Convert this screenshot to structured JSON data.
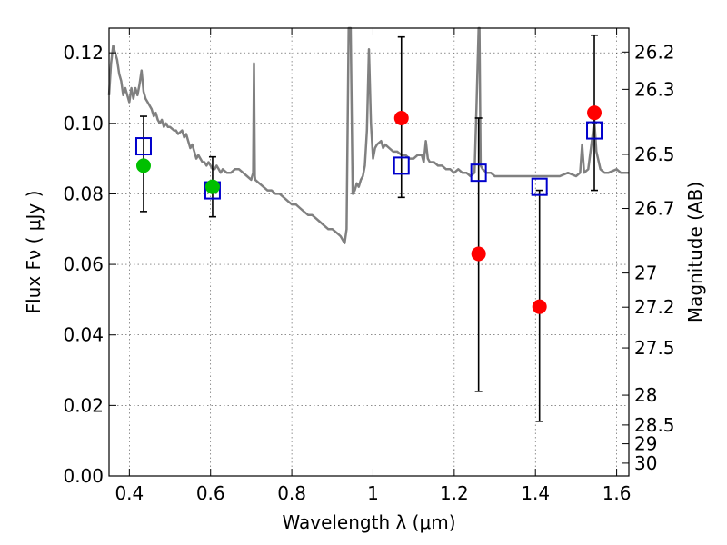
{
  "chart_data": {
    "type": "scatter",
    "xlabel": "Wavelength  λ (μm)",
    "ylabel": "Flux  Fν  ( μJy )",
    "ylabel_right": "Magnitude (AB)",
    "xlim": [
      0.35,
      1.63
    ],
    "ylim": [
      0.0,
      0.127
    ],
    "grid": true,
    "legend": "none",
    "x_ticks": [
      0.4,
      0.6,
      0.8,
      1.0,
      1.2,
      1.4,
      1.6
    ],
    "x_tick_labels": [
      "0.4",
      "0.6",
      "0.8",
      "1",
      "1.2",
      "1.4",
      "1.6"
    ],
    "y_ticks": [
      0.0,
      0.02,
      0.04,
      0.06,
      0.08,
      0.1,
      0.12
    ],
    "y_tick_labels": [
      "0.00",
      "0.02",
      "0.04",
      "0.06",
      "0.08",
      "0.10",
      "0.12"
    ],
    "right_ticks": [
      26.2,
      26.3,
      26.5,
      26.7,
      27,
      27.2,
      27.5,
      28,
      28.5,
      29,
      30
    ],
    "right_tick_labels": [
      "26.2",
      "26.3",
      "26.5",
      "26.7",
      "27",
      "27.2",
      "27.5",
      "28",
      "28.5",
      "29",
      "30"
    ],
    "colors": {
      "template": "#808080",
      "observed_green": "#00c000",
      "observed_red": "#ff0000",
      "model": "#0000cc",
      "errorbar": "#000000"
    },
    "series": [
      {
        "kind": "template_spectrum",
        "marker": "line",
        "points": [
          [
            0.35,
            0.108
          ],
          [
            0.355,
            0.117
          ],
          [
            0.36,
            0.122
          ],
          [
            0.365,
            0.12
          ],
          [
            0.37,
            0.118
          ],
          [
            0.375,
            0.114
          ],
          [
            0.38,
            0.112
          ],
          [
            0.385,
            0.108
          ],
          [
            0.39,
            0.11
          ],
          [
            0.395,
            0.108
          ],
          [
            0.4,
            0.106
          ],
          [
            0.405,
            0.11
          ],
          [
            0.41,
            0.107
          ],
          [
            0.415,
            0.11
          ],
          [
            0.42,
            0.108
          ],
          [
            0.425,
            0.111
          ],
          [
            0.43,
            0.115
          ],
          [
            0.435,
            0.109
          ],
          [
            0.44,
            0.107
          ],
          [
            0.445,
            0.106
          ],
          [
            0.45,
            0.105
          ],
          [
            0.455,
            0.104
          ],
          [
            0.46,
            0.102
          ],
          [
            0.465,
            0.103
          ],
          [
            0.47,
            0.101
          ],
          [
            0.475,
            0.1
          ],
          [
            0.48,
            0.101
          ],
          [
            0.485,
            0.099
          ],
          [
            0.49,
            0.1
          ],
          [
            0.495,
            0.099
          ],
          [
            0.5,
            0.099
          ],
          [
            0.51,
            0.098
          ],
          [
            0.515,
            0.098
          ],
          [
            0.52,
            0.097
          ],
          [
            0.53,
            0.098
          ],
          [
            0.535,
            0.096
          ],
          [
            0.54,
            0.097
          ],
          [
            0.545,
            0.095
          ],
          [
            0.55,
            0.093
          ],
          [
            0.555,
            0.094
          ],
          [
            0.56,
            0.092
          ],
          [
            0.565,
            0.09
          ],
          [
            0.57,
            0.091
          ],
          [
            0.575,
            0.09
          ],
          [
            0.58,
            0.089
          ],
          [
            0.585,
            0.089
          ],
          [
            0.59,
            0.088
          ],
          [
            0.595,
            0.089
          ],
          [
            0.6,
            0.088
          ],
          [
            0.605,
            0.087
          ],
          [
            0.61,
            0.087
          ],
          [
            0.615,
            0.088
          ],
          [
            0.62,
            0.087
          ],
          [
            0.625,
            0.086
          ],
          [
            0.63,
            0.087
          ],
          [
            0.64,
            0.086
          ],
          [
            0.65,
            0.086
          ],
          [
            0.66,
            0.087
          ],
          [
            0.67,
            0.087
          ],
          [
            0.68,
            0.086
          ],
          [
            0.69,
            0.085
          ],
          [
            0.7,
            0.084
          ],
          [
            0.705,
            0.086
          ],
          [
            0.707,
            0.117
          ],
          [
            0.709,
            0.085
          ],
          [
            0.71,
            0.084
          ],
          [
            0.72,
            0.083
          ],
          [
            0.73,
            0.082
          ],
          [
            0.74,
            0.081
          ],
          [
            0.75,
            0.081
          ],
          [
            0.76,
            0.08
          ],
          [
            0.77,
            0.08
          ],
          [
            0.78,
            0.079
          ],
          [
            0.79,
            0.078
          ],
          [
            0.8,
            0.077
          ],
          [
            0.81,
            0.077
          ],
          [
            0.82,
            0.076
          ],
          [
            0.83,
            0.075
          ],
          [
            0.84,
            0.074
          ],
          [
            0.85,
            0.074
          ],
          [
            0.86,
            0.073
          ],
          [
            0.87,
            0.072
          ],
          [
            0.88,
            0.071
          ],
          [
            0.89,
            0.07
          ],
          [
            0.9,
            0.07
          ],
          [
            0.91,
            0.069
          ],
          [
            0.92,
            0.068
          ],
          [
            0.925,
            0.067
          ],
          [
            0.93,
            0.066
          ],
          [
            0.935,
            0.07
          ],
          [
            0.94,
            0.127
          ],
          [
            0.945,
            0.127
          ],
          [
            0.95,
            0.08
          ],
          [
            0.955,
            0.081
          ],
          [
            0.96,
            0.083
          ],
          [
            0.965,
            0.082
          ],
          [
            0.97,
            0.084
          ],
          [
            0.975,
            0.085
          ],
          [
            0.98,
            0.088
          ],
          [
            0.985,
            0.098
          ],
          [
            0.99,
            0.121
          ],
          [
            0.995,
            0.1
          ],
          [
            1.0,
            0.09
          ],
          [
            1.005,
            0.093
          ],
          [
            1.01,
            0.094
          ],
          [
            1.02,
            0.095
          ],
          [
            1.025,
            0.093
          ],
          [
            1.03,
            0.094
          ],
          [
            1.04,
            0.093
          ],
          [
            1.05,
            0.092
          ],
          [
            1.06,
            0.092
          ],
          [
            1.07,
            0.091
          ],
          [
            1.08,
            0.091
          ],
          [
            1.09,
            0.09
          ],
          [
            1.1,
            0.09
          ],
          [
            1.11,
            0.091
          ],
          [
            1.12,
            0.091
          ],
          [
            1.125,
            0.089
          ],
          [
            1.13,
            0.095
          ],
          [
            1.135,
            0.09
          ],
          [
            1.14,
            0.089
          ],
          [
            1.15,
            0.089
          ],
          [
            1.16,
            0.088
          ],
          [
            1.17,
            0.088
          ],
          [
            1.18,
            0.087
          ],
          [
            1.19,
            0.087
          ],
          [
            1.2,
            0.086
          ],
          [
            1.21,
            0.087
          ],
          [
            1.22,
            0.086
          ],
          [
            1.23,
            0.086
          ],
          [
            1.24,
            0.085
          ],
          [
            1.25,
            0.086
          ],
          [
            1.255,
            0.105
          ],
          [
            1.26,
            0.127
          ],
          [
            1.262,
            0.127
          ],
          [
            1.265,
            0.088
          ],
          [
            1.27,
            0.087
          ],
          [
            1.28,
            0.086
          ],
          [
            1.29,
            0.086
          ],
          [
            1.3,
            0.085
          ],
          [
            1.32,
            0.085
          ],
          [
            1.34,
            0.085
          ],
          [
            1.36,
            0.085
          ],
          [
            1.38,
            0.085
          ],
          [
            1.4,
            0.085
          ],
          [
            1.42,
            0.085
          ],
          [
            1.44,
            0.085
          ],
          [
            1.46,
            0.085
          ],
          [
            1.48,
            0.086
          ],
          [
            1.5,
            0.085
          ],
          [
            1.51,
            0.086
          ],
          [
            1.515,
            0.094
          ],
          [
            1.52,
            0.086
          ],
          [
            1.53,
            0.087
          ],
          [
            1.54,
            0.096
          ],
          [
            1.545,
            0.101
          ],
          [
            1.55,
            0.092
          ],
          [
            1.56,
            0.087
          ],
          [
            1.57,
            0.086
          ],
          [
            1.58,
            0.086
          ],
          [
            1.6,
            0.087
          ],
          [
            1.61,
            0.086
          ],
          [
            1.63,
            0.086
          ]
        ]
      },
      {
        "kind": "observed",
        "marker": "circle",
        "color": "#00c000",
        "points": [
          {
            "x": 0.435,
            "y": 0.088,
            "ylo": 0.075,
            "yhi": 0.102
          },
          {
            "x": 0.605,
            "y": 0.082,
            "ylo": 0.0735,
            "yhi": 0.0905
          }
        ]
      },
      {
        "kind": "observed",
        "marker": "circle",
        "color": "#ff0000",
        "points": [
          {
            "x": 1.07,
            "y": 0.1015,
            "ylo": 0.079,
            "yhi": 0.1245
          },
          {
            "x": 1.26,
            "y": 0.063,
            "ylo": 0.024,
            "yhi": 0.1015
          },
          {
            "x": 1.41,
            "y": 0.048,
            "ylo": 0.0155,
            "yhi": 0.081
          },
          {
            "x": 1.545,
            "y": 0.103,
            "ylo": 0.081,
            "yhi": 0.125
          }
        ]
      },
      {
        "kind": "model_photometry",
        "marker": "open-square",
        "color": "#0000cc",
        "points": [
          {
            "x": 0.435,
            "y": 0.0935
          },
          {
            "x": 0.605,
            "y": 0.081
          },
          {
            "x": 1.07,
            "y": 0.088
          },
          {
            "x": 1.26,
            "y": 0.086
          },
          {
            "x": 1.41,
            "y": 0.082
          },
          {
            "x": 1.545,
            "y": 0.098
          }
        ]
      }
    ]
  }
}
